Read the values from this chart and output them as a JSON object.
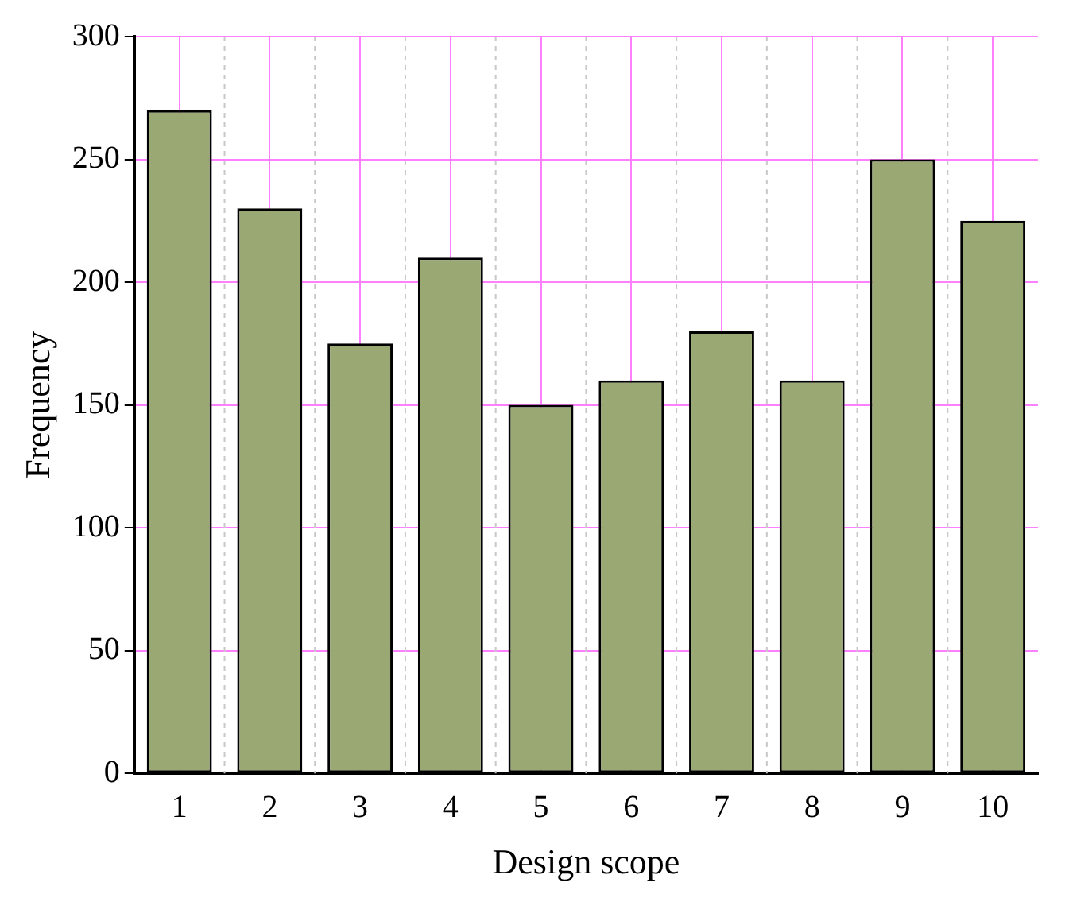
{
  "chart_data": {
    "type": "bar",
    "xlabel": "Design scope",
    "ylabel": "Frequency",
    "categories": [
      "1",
      "2",
      "3",
      "4",
      "5",
      "6",
      "7",
      "8",
      "9",
      "10"
    ],
    "values": [
      270,
      230,
      175,
      210,
      150,
      160,
      180,
      160,
      250,
      225
    ],
    "color": "#9aa874",
    "ylim": [
      0,
      300
    ],
    "yticks": [
      0,
      50,
      100,
      150,
      200,
      250,
      300
    ],
    "grid": true
  }
}
